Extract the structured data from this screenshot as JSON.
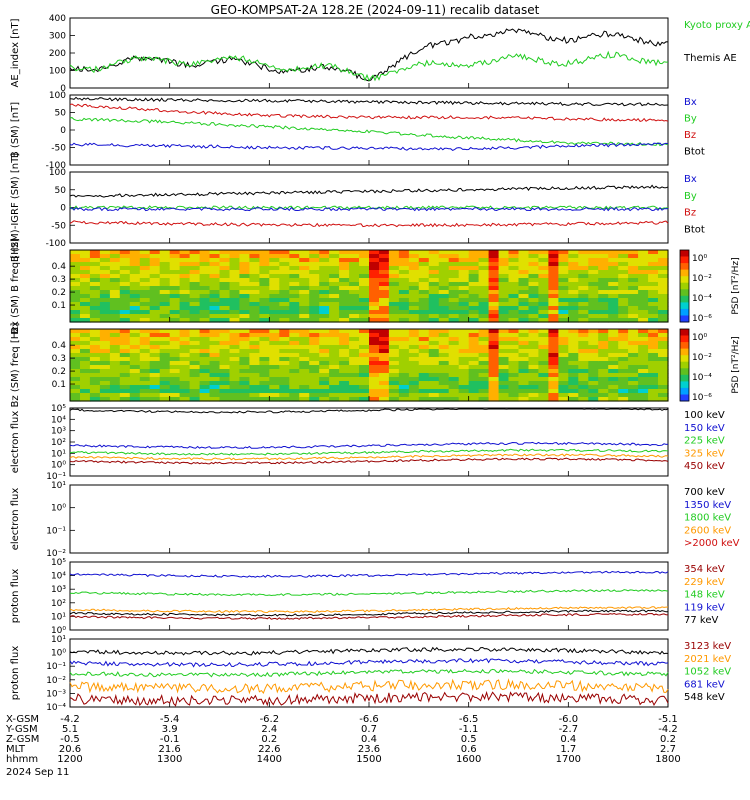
{
  "title": "GEO-KOMPSAT-2A 128.2E (2024-09-11) recalib dataset",
  "panels": [
    {
      "id": "ae",
      "ylabel": "AE_index [nT]",
      "yticks": [
        "0",
        "100",
        "200",
        "300",
        "400"
      ],
      "legend": [
        {
          "label": "Kyoto proxy AE",
          "color": "#22cc22"
        },
        {
          "label": "Themis AE",
          "color": "#000000"
        }
      ]
    },
    {
      "id": "bsm",
      "ylabel": "B (SM) [nT]",
      "yticks": [
        "-100",
        "-50",
        "0",
        "50",
        "100"
      ],
      "legend": [
        {
          "label": "Bx",
          "color": "#1010d0"
        },
        {
          "label": "By",
          "color": "#22cc22"
        },
        {
          "label": "Bz",
          "color": "#d01010"
        },
        {
          "label": "Btot",
          "color": "#000000"
        }
      ]
    },
    {
      "id": "bigrf",
      "ylabel": "B (SM)-IGRF (SM) [nT]",
      "yticks": [
        "-100",
        "-50",
        "0",
        "50",
        "100"
      ],
      "legend": [
        {
          "label": "Bx",
          "color": "#1010d0"
        },
        {
          "label": "By",
          "color": "#22cc22"
        },
        {
          "label": "Bz",
          "color": "#d01010"
        },
        {
          "label": "Btot",
          "color": "#000000"
        }
      ]
    },
    {
      "id": "bxspec",
      "ylabel": "Bx (SM) B freq [Hz]",
      "yticks": [
        "0.1",
        "0.2",
        "0.3",
        "0.4"
      ],
      "cbar_label": "PSD [nT²/Hz]",
      "cbar_ticks": [
        "10⁰",
        "10⁻²",
        "10⁻⁴",
        "10⁻⁶"
      ]
    },
    {
      "id": "bzspec",
      "ylabel": "Bz (SM) freq [Hz]",
      "yticks": [
        "0.1",
        "0.2",
        "0.3",
        "0.4"
      ],
      "cbar_label": "PSD [nT²/Hz]",
      "cbar_ticks": [
        "10⁰",
        "10⁻²",
        "10⁻⁴",
        "10⁻⁶"
      ]
    },
    {
      "id": "elo",
      "ylabel": "electron flux",
      "yticks": [
        "10⁻¹",
        "10⁰",
        "10¹",
        "10²",
        "10³",
        "10⁴",
        "10⁵"
      ],
      "legend": [
        {
          "label": "100 keV",
          "color": "#000000"
        },
        {
          "label": "150 keV",
          "color": "#1010d0"
        },
        {
          "label": "225 keV",
          "color": "#22cc22"
        },
        {
          "label": "325 keV",
          "color": "#ff9900"
        },
        {
          "label": "450 keV",
          "color": "#990000"
        }
      ]
    },
    {
      "id": "ehi",
      "ylabel": "electron flux",
      "yticks": [
        "10⁻²",
        "10⁻¹",
        "10⁰",
        "10¹"
      ],
      "legend": [
        {
          "label": "700 keV",
          "color": "#000000"
        },
        {
          "label": "1350 keV",
          "color": "#1010d0"
        },
        {
          "label": "1800 keV",
          "color": "#22cc22"
        },
        {
          "label": "2600 keV",
          "color": "#ff9900"
        },
        {
          "label": ">2000 keV",
          "color": "#d01010"
        }
      ]
    },
    {
      "id": "plo",
      "ylabel": "proton flux",
      "yticks": [
        "10⁰",
        "10¹",
        "10²",
        "10³",
        "10⁴",
        "10⁵"
      ],
      "legend": [
        {
          "label": "354 keV",
          "color": "#990000"
        },
        {
          "label": "229 keV",
          "color": "#ff9900"
        },
        {
          "label": "148 keV",
          "color": "#22cc22"
        },
        {
          "label": "119 keV",
          "color": "#1010d0"
        },
        {
          "label": "77 keV",
          "color": "#000000"
        }
      ]
    },
    {
      "id": "phi",
      "ylabel": "proton flux",
      "yticks": [
        "10⁻⁴",
        "10⁻³",
        "10⁻²",
        "10⁻¹",
        "10⁰",
        "10¹"
      ],
      "legend": [
        {
          "label": "3123 keV",
          "color": "#990000"
        },
        {
          "label": "2021 keV",
          "color": "#ff9900"
        },
        {
          "label": "1052 keV",
          "color": "#22cc22"
        },
        {
          "label": "681 keV",
          "color": "#1010d0"
        },
        {
          "label": "548 keV",
          "color": "#000000"
        }
      ]
    }
  ],
  "footer": {
    "rows": [
      {
        "label": "X-GSM",
        "values": [
          "-4.2",
          "-5.4",
          "-6.2",
          "-6.6",
          "-6.5",
          "-6.0",
          "-5.1"
        ]
      },
      {
        "label": "Y-GSM",
        "values": [
          "5.1",
          "3.9",
          "2.4",
          "0.7",
          "-1.1",
          "-2.7",
          "-4.2"
        ]
      },
      {
        "label": "Z-GSM",
        "values": [
          "-0.5",
          "-0.1",
          "0.2",
          "0.4",
          "0.5",
          "0.4",
          "0.2"
        ]
      },
      {
        "label": "MLT",
        "values": [
          "20.6",
          "21.6",
          "22.6",
          "23.6",
          "0.6",
          "1.7",
          "2.7"
        ]
      },
      {
        "label": "hhmm",
        "values": [
          "1200",
          "1300",
          "1400",
          "1500",
          "1600",
          "1700",
          "1800"
        ]
      }
    ],
    "date": "2024 Sep 11"
  },
  "chart_data": {
    "type": "line",
    "x_label": "hhmm",
    "x": [
      "1200",
      "1300",
      "1400",
      "1500",
      "1600",
      "1700",
      "1800"
    ],
    "series": [
      {
        "name": "Themis AE",
        "panel": "ae",
        "values": [
          125,
          170,
          130,
          80,
          330,
          310,
          290
        ]
      },
      {
        "name": "Kyoto proxy AE",
        "panel": "ae",
        "values": [
          125,
          170,
          150,
          80,
          160,
          170,
          180
        ]
      },
      {
        "name": "Btot (B SM)",
        "panel": "bsm",
        "values": [
          98,
          95,
          92,
          88,
          85,
          82,
          80
        ]
      },
      {
        "name": "Bz (B SM)",
        "panel": "bsm",
        "values": [
          80,
          60,
          45,
          40,
          40,
          35,
          30
        ]
      },
      {
        "name": "By (B SM)",
        "panel": "bsm",
        "values": [
          35,
          25,
          10,
          -5,
          -25,
          -40,
          -45
        ]
      },
      {
        "name": "Bx (B SM)",
        "panel": "bsm",
        "values": [
          -45,
          -50,
          -55,
          -58,
          -60,
          -50,
          -45
        ]
      }
    ]
  }
}
